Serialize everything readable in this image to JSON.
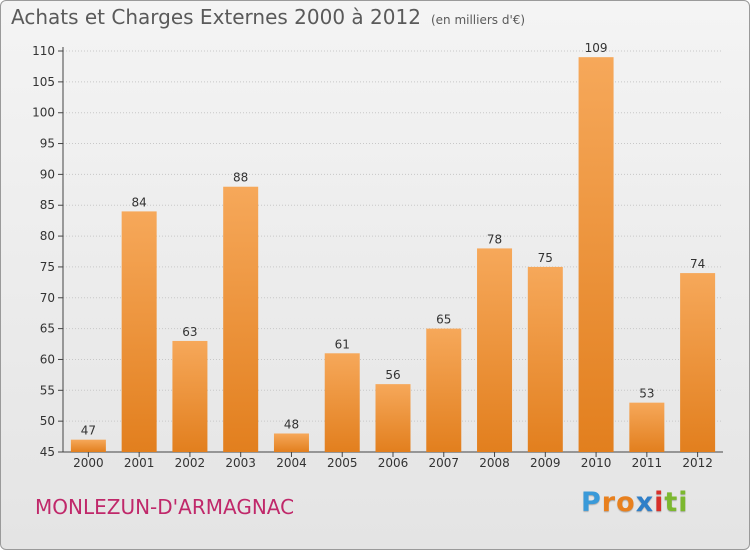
{
  "header": {
    "title": "Achats et Charges Externes 2000 à 2012",
    "unit_note": "(en milliers d'€)"
  },
  "footer": {
    "commune": "MONLEZUN-D'ARMAGNAC",
    "brand": {
      "letters": [
        "P",
        "r",
        "o",
        "x",
        "i",
        "t",
        "i"
      ],
      "colors": [
        "#3a9ad9",
        "#e8801e",
        "#e8801e",
        "#2f7fc8",
        "#d8302a",
        "#7cb82f",
        "#7cb82f"
      ]
    }
  },
  "colors": {
    "bar_top": "#f6a85a",
    "bar_bottom": "#e27f1e",
    "axis": "#444444",
    "grid": "#c8c8c8",
    "text": "#333333"
  },
  "chart_data": {
    "type": "bar",
    "title": "Achats et Charges Externes 2000 à 2012",
    "subtitle": "(en milliers d'€)",
    "categories": [
      "2000",
      "2001",
      "2002",
      "2003",
      "2004",
      "2005",
      "2006",
      "2007",
      "2008",
      "2009",
      "2010",
      "2011",
      "2012"
    ],
    "values": [
      47,
      84,
      63,
      88,
      48,
      61,
      56,
      65,
      78,
      75,
      109,
      53,
      74
    ],
    "data_labels": [
      "47",
      "84",
      "63",
      "88",
      "48",
      "61",
      "56",
      "65",
      "78",
      "75",
      "109",
      "53",
      "74"
    ],
    "xlabel": "",
    "ylabel": "",
    "ylim": [
      45,
      110
    ],
    "yticks": [
      45,
      50,
      55,
      60,
      65,
      70,
      75,
      80,
      85,
      90,
      95,
      100,
      105,
      110
    ],
    "grid": true
  }
}
